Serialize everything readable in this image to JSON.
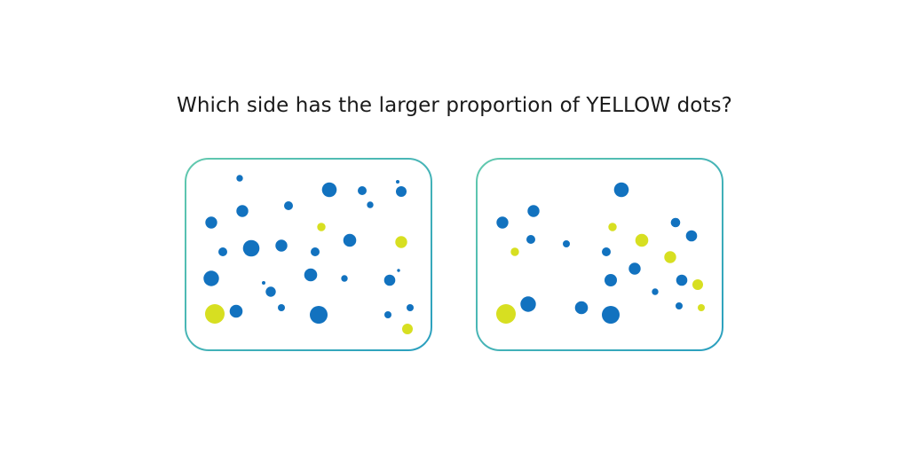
{
  "question": "Which side has the larger proportion of YELLOW dots?",
  "colors": {
    "blue": "#1272bf",
    "yellow": "#d7df21",
    "border_start": "#62c9ae",
    "border_end": "#2a9fbf"
  },
  "panels": [
    {
      "side": "left"
    },
    {
      "side": "right"
    }
  ]
}
